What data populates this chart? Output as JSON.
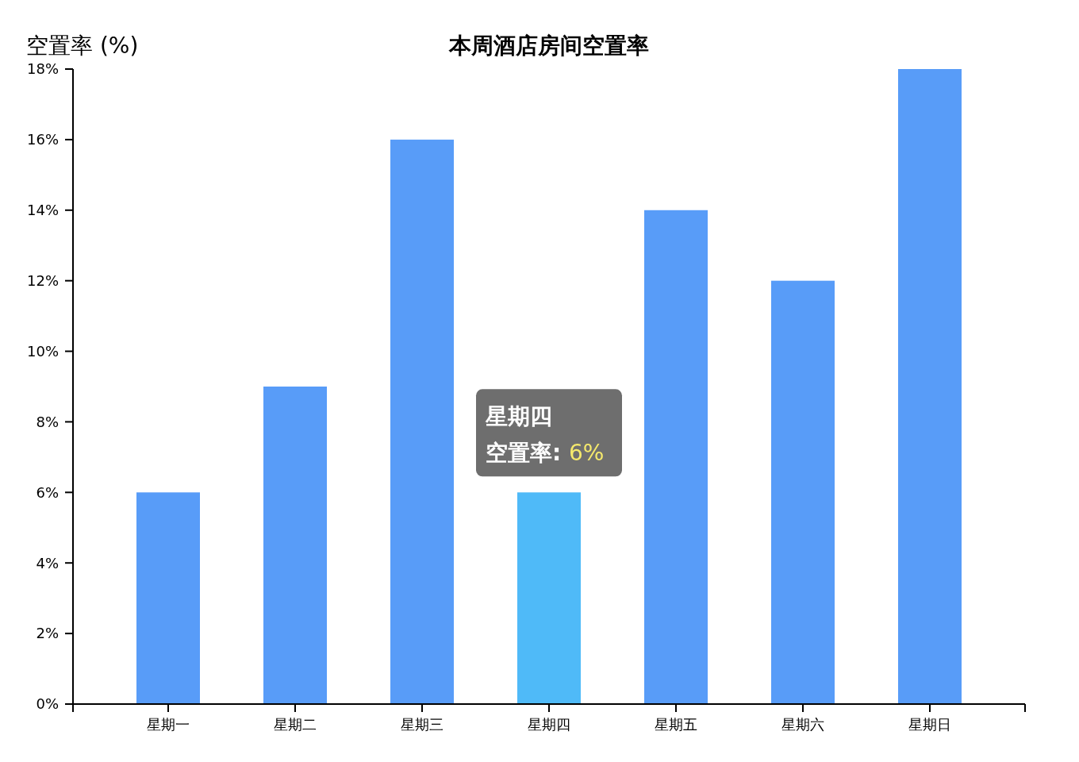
{
  "chart_data": {
    "type": "bar",
    "title": "本周酒店房间空置率",
    "ylabel": "空置率 (%)",
    "categories": [
      "星期一",
      "星期二",
      "星期三",
      "星期四",
      "星期五",
      "星期六",
      "星期日"
    ],
    "values": [
      6,
      9,
      16,
      6,
      14,
      12,
      18
    ],
    "colors": [
      "#589cf8",
      "#589cf8",
      "#589cf8",
      "#4fbaf8",
      "#589cf8",
      "#589cf8",
      "#589cf8"
    ],
    "ylim": [
      0,
      18
    ],
    "yticks": [
      {
        "value": 0,
        "label": "0%"
      },
      {
        "value": 2,
        "label": "2%"
      },
      {
        "value": 4,
        "label": "4%"
      },
      {
        "value": 6,
        "label": "6%"
      },
      {
        "value": 8,
        "label": "8%"
      },
      {
        "value": 10,
        "label": "10%"
      },
      {
        "value": 12,
        "label": "12%"
      },
      {
        "value": 14,
        "label": "14%"
      },
      {
        "value": 16,
        "label": "16%"
      },
      {
        "value": 18,
        "label": "18%"
      }
    ],
    "annotations": [
      {
        "text": "空置率: 6%",
        "x": "星期四",
        "y": 6
      }
    ],
    "grid": false,
    "legend": false
  }
}
